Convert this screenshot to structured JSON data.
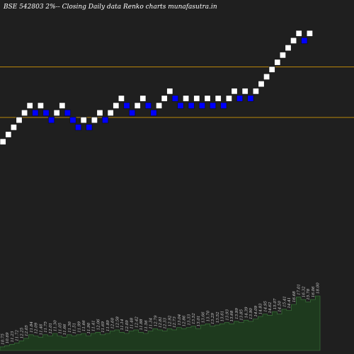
{
  "chart_data": {
    "type": "renko",
    "title": "BSE 542803 2%-- Closing Daily data Renko charts munafasutra.in",
    "colors": {
      "background": "#1f1f1f",
      "up_brick": "#ffffff",
      "down_brick": "#0000ff",
      "brick_border": "#111111",
      "reference_line": "#b8860b",
      "volume_fill": "#1e3a1e",
      "volume_edge": "#3f7f3f"
    },
    "reference_lines": [
      {
        "level": 33
      },
      {
        "level": 26
      }
    ],
    "bricks": [
      {
        "dir": "up",
        "level": 22
      },
      {
        "dir": "up",
        "level": 23
      },
      {
        "dir": "up",
        "level": 24
      },
      {
        "dir": "up",
        "level": 25
      },
      {
        "dir": "up",
        "level": 26
      },
      {
        "dir": "up",
        "level": 27
      },
      {
        "dir": "down",
        "level": 26
      },
      {
        "dir": "up",
        "level": 27
      },
      {
        "dir": "down",
        "level": 26
      },
      {
        "dir": "down",
        "level": 25
      },
      {
        "dir": "up",
        "level": 26
      },
      {
        "dir": "up",
        "level": 27
      },
      {
        "dir": "down",
        "level": 26
      },
      {
        "dir": "down",
        "level": 25
      },
      {
        "dir": "down",
        "level": 24
      },
      {
        "dir": "up",
        "level": 25
      },
      {
        "dir": "down",
        "level": 24
      },
      {
        "dir": "up",
        "level": 25
      },
      {
        "dir": "up",
        "level": 26
      },
      {
        "dir": "down",
        "level": 25
      },
      {
        "dir": "up",
        "level": 26
      },
      {
        "dir": "up",
        "level": 27
      },
      {
        "dir": "up",
        "level": 28
      },
      {
        "dir": "down",
        "level": 27
      },
      {
        "dir": "down",
        "level": 26
      },
      {
        "dir": "up",
        "level": 27
      },
      {
        "dir": "up",
        "level": 28
      },
      {
        "dir": "down",
        "level": 27
      },
      {
        "dir": "down",
        "level": 26
      },
      {
        "dir": "up",
        "level": 27
      },
      {
        "dir": "up",
        "level": 28
      },
      {
        "dir": "up",
        "level": 29
      },
      {
        "dir": "down",
        "level": 28
      },
      {
        "dir": "down",
        "level": 27
      },
      {
        "dir": "up",
        "level": 28
      },
      {
        "dir": "down",
        "level": 27
      },
      {
        "dir": "up",
        "level": 28
      },
      {
        "dir": "down",
        "level": 27
      },
      {
        "dir": "up",
        "level": 28
      },
      {
        "dir": "down",
        "level": 27
      },
      {
        "dir": "up",
        "level": 28
      },
      {
        "dir": "down",
        "level": 27
      },
      {
        "dir": "up",
        "level": 28
      },
      {
        "dir": "up",
        "level": 29
      },
      {
        "dir": "down",
        "level": 28
      },
      {
        "dir": "up",
        "level": 29
      },
      {
        "dir": "down",
        "level": 28
      },
      {
        "dir": "up",
        "level": 29
      },
      {
        "dir": "up",
        "level": 30
      },
      {
        "dir": "up",
        "level": 31
      },
      {
        "dir": "up",
        "level": 32
      },
      {
        "dir": "up",
        "level": 33
      },
      {
        "dir": "up",
        "level": 34
      },
      {
        "dir": "up",
        "level": 35
      },
      {
        "dir": "up",
        "level": 36
      },
      {
        "dir": "up",
        "level": 37
      },
      {
        "dir": "down",
        "level": 36
      },
      {
        "dir": "up",
        "level": 37
      }
    ],
    "volume_labels": [
      "10.75",
      "10.69",
      "11.23",
      "11.72",
      "12.25",
      "12.05",
      "11.84",
      "12.09",
      "11.46",
      "11.75",
      "12.01",
      "11.30",
      "11.05",
      "11.66",
      "11.36",
      "11.51",
      "11.99",
      "11.66",
      "11.90",
      "11.41",
      "12.06",
      "11.69",
      "11.89",
      "12.60",
      "12.58",
      "11.14",
      "12.09",
      "11.48",
      "12.42",
      "11.88",
      "11.56",
      "11.34",
      "12.79",
      "12.81",
      "12.33",
      "12.92",
      "12.73",
      "13.04",
      "12.86",
      "13.33",
      "13.52",
      "13.01",
      "13.66",
      "13.70",
      "13.29",
      "13.52",
      "13.61",
      "13.93",
      "13.68",
      "13.99",
      "13.85",
      "14.39",
      "13.90",
      "14.09",
      "14.83",
      "14.95",
      "14.62",
      "15.07",
      "14.50",
      "15.41",
      "14.41",
      "16.68",
      "17.01",
      "16.32",
      "15.78",
      "16.06",
      "18.00"
    ],
    "volume": [
      3,
      4,
      5,
      6,
      8,
      10,
      13,
      12,
      11,
      13,
      12,
      14,
      12,
      11,
      13,
      12,
      13,
      14,
      12,
      14,
      15,
      13,
      14,
      16,
      17,
      15,
      14,
      16,
      17,
      15,
      14,
      16,
      18,
      17,
      16,
      18,
      17,
      19,
      18,
      19,
      20,
      18,
      21,
      22,
      20,
      21,
      22,
      23,
      22,
      24,
      23,
      25,
      24,
      26,
      28,
      30,
      29,
      32,
      30,
      34,
      33,
      38,
      44,
      42,
      40,
      42,
      45
    ]
  }
}
